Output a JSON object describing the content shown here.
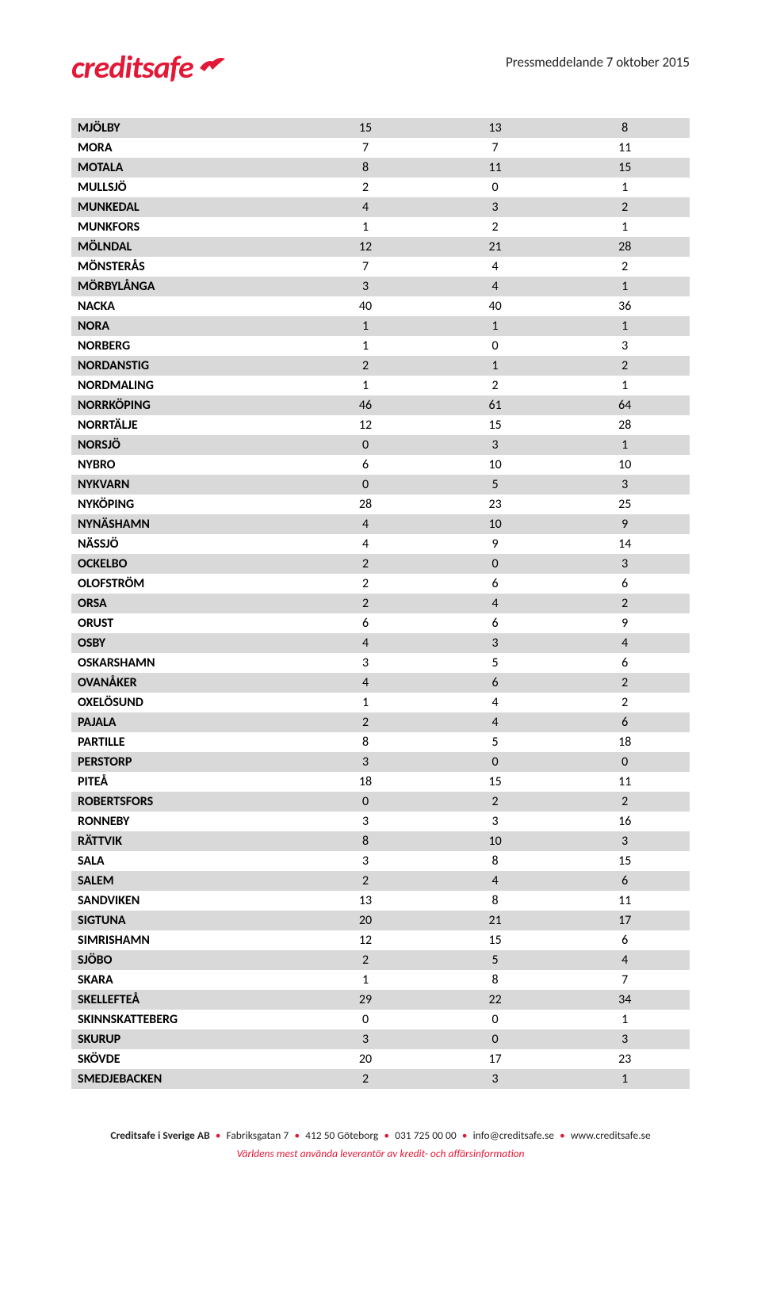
{
  "header": {
    "logo_prefix": "credit",
    "logo_suffix": "safe",
    "press": "Pressmeddelande 7 oktober 2015"
  },
  "table": {
    "row_stripe_even": "#d9d9d9",
    "row_stripe_odd": "#ffffff",
    "text_color": "#000000",
    "font_size": 16,
    "rows": [
      {
        "name": "MJÖLBY",
        "c1": "15",
        "c2": "13",
        "c3": "8"
      },
      {
        "name": "MORA",
        "c1": "7",
        "c2": "7",
        "c3": "11"
      },
      {
        "name": "MOTALA",
        "c1": "8",
        "c2": "11",
        "c3": "15"
      },
      {
        "name": "MULLSJÖ",
        "c1": "2",
        "c2": "0",
        "c3": "1"
      },
      {
        "name": "MUNKEDAL",
        "c1": "4",
        "c2": "3",
        "c3": "2"
      },
      {
        "name": "MUNKFORS",
        "c1": "1",
        "c2": "2",
        "c3": "1"
      },
      {
        "name": "MÖLNDAL",
        "c1": "12",
        "c2": "21",
        "c3": "28"
      },
      {
        "name": "MÖNSTERÅS",
        "c1": "7",
        "c2": "4",
        "c3": "2"
      },
      {
        "name": "MÖRBYLÅNGA",
        "c1": "3",
        "c2": "4",
        "c3": "1"
      },
      {
        "name": "NACKA",
        "c1": "40",
        "c2": "40",
        "c3": "36"
      },
      {
        "name": "NORA",
        "c1": "1",
        "c2": "1",
        "c3": "1"
      },
      {
        "name": "NORBERG",
        "c1": "1",
        "c2": "0",
        "c3": "3"
      },
      {
        "name": "NORDANSTIG",
        "c1": "2",
        "c2": "1",
        "c3": "2"
      },
      {
        "name": "NORDMALING",
        "c1": "1",
        "c2": "2",
        "c3": "1"
      },
      {
        "name": "NORRKÖPING",
        "c1": "46",
        "c2": "61",
        "c3": "64"
      },
      {
        "name": "NORRTÄLJE",
        "c1": "12",
        "c2": "15",
        "c3": "28"
      },
      {
        "name": "NORSJÖ",
        "c1": "0",
        "c2": "3",
        "c3": "1"
      },
      {
        "name": "NYBRO",
        "c1": "6",
        "c2": "10",
        "c3": "10"
      },
      {
        "name": "NYKVARN",
        "c1": "0",
        "c2": "5",
        "c3": "3"
      },
      {
        "name": "NYKÖPING",
        "c1": "28",
        "c2": "23",
        "c3": "25"
      },
      {
        "name": "NYNÄSHAMN",
        "c1": "4",
        "c2": "10",
        "c3": "9"
      },
      {
        "name": "NÄSSJÖ",
        "c1": "4",
        "c2": "9",
        "c3": "14"
      },
      {
        "name": "OCKELBO",
        "c1": "2",
        "c2": "0",
        "c3": "3"
      },
      {
        "name": "OLOFSTRÖM",
        "c1": "2",
        "c2": "6",
        "c3": "6"
      },
      {
        "name": "ORSA",
        "c1": "2",
        "c2": "4",
        "c3": "2"
      },
      {
        "name": "ORUST",
        "c1": "6",
        "c2": "6",
        "c3": "9"
      },
      {
        "name": "OSBY",
        "c1": "4",
        "c2": "3",
        "c3": "4"
      },
      {
        "name": "OSKARSHAMN",
        "c1": "3",
        "c2": "5",
        "c3": "6"
      },
      {
        "name": "OVANÅKER",
        "c1": "4",
        "c2": "6",
        "c3": "2"
      },
      {
        "name": "OXELÖSUND",
        "c1": "1",
        "c2": "4",
        "c3": "2"
      },
      {
        "name": "PAJALA",
        "c1": "2",
        "c2": "4",
        "c3": "6"
      },
      {
        "name": "PARTILLE",
        "c1": "8",
        "c2": "5",
        "c3": "18"
      },
      {
        "name": "PERSTORP",
        "c1": "3",
        "c2": "0",
        "c3": "0"
      },
      {
        "name": "PITEÅ",
        "c1": "18",
        "c2": "15",
        "c3": "11"
      },
      {
        "name": "ROBERTSFORS",
        "c1": "0",
        "c2": "2",
        "c3": "2"
      },
      {
        "name": "RONNEBY",
        "c1": "3",
        "c2": "3",
        "c3": "16"
      },
      {
        "name": "RÄTTVIK",
        "c1": "8",
        "c2": "10",
        "c3": "3"
      },
      {
        "name": "SALA",
        "c1": "3",
        "c2": "8",
        "c3": "15"
      },
      {
        "name": "SALEM",
        "c1": "2",
        "c2": "4",
        "c3": "6"
      },
      {
        "name": "SANDVIKEN",
        "c1": "13",
        "c2": "8",
        "c3": "11"
      },
      {
        "name": "SIGTUNA",
        "c1": "20",
        "c2": "21",
        "c3": "17"
      },
      {
        "name": "SIMRISHAMN",
        "c1": "12",
        "c2": "15",
        "c3": "6"
      },
      {
        "name": "SJÖBO",
        "c1": "2",
        "c2": "5",
        "c3": "4"
      },
      {
        "name": "SKARA",
        "c1": "1",
        "c2": "8",
        "c3": "7"
      },
      {
        "name": "SKELLEFTEÅ",
        "c1": "29",
        "c2": "22",
        "c3": "34"
      },
      {
        "name": "SKINNSKATTEBERG",
        "c1": "0",
        "c2": "0",
        "c3": "1"
      },
      {
        "name": "SKURUP",
        "c1": "3",
        "c2": "0",
        "c3": "3"
      },
      {
        "name": "SKÖVDE",
        "c1": "20",
        "c2": "17",
        "c3": "23"
      },
      {
        "name": "SMEDJEBACKEN",
        "c1": "2",
        "c2": "3",
        "c3": "1"
      }
    ]
  },
  "footer": {
    "company": "Creditsafe i Sverige AB",
    "address": "Fabriksgatan 7",
    "postal": "412 50 Göteborg",
    "phone": "031 725 00 00",
    "email": "info@creditsafe.se",
    "web": "www.creditsafe.se",
    "tagline": "Världens mest använda leverantör av kredit- och affärsinformation"
  },
  "colors": {
    "brand_red": "#e31837",
    "stripe": "#d9d9d9",
    "text": "#000000",
    "background": "#ffffff"
  }
}
